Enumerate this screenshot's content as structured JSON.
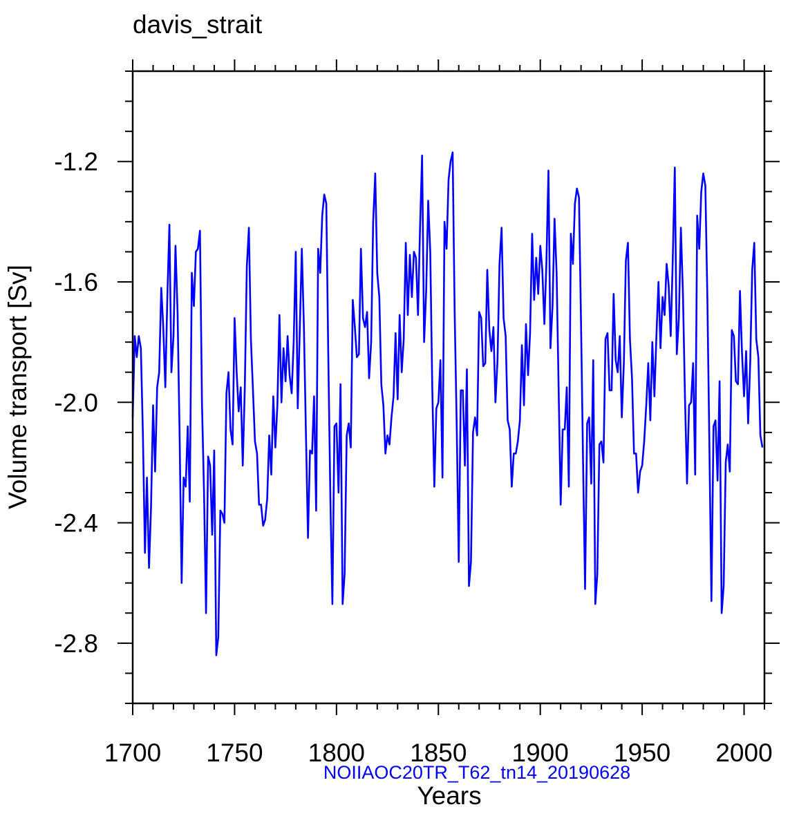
{
  "chart_data": {
    "type": "line",
    "title": "davis_strait",
    "subtitle": "NOIIAOC20TR_T62_tn14_20190628",
    "xlabel": "Years",
    "ylabel": "Volume transport [Sv]",
    "xlim": [
      1700,
      2010
    ],
    "ylim": [
      -3.0,
      -0.9
    ],
    "xticks": [
      1700,
      1750,
      1800,
      1850,
      1900,
      1950,
      2000
    ],
    "xtick_labels": [
      "1700",
      "1750",
      "1800",
      "1850",
      "1900",
      "1950",
      "2000"
    ],
    "yticks": [
      -1.2,
      -1.6,
      -2.0,
      -2.4,
      -2.8
    ],
    "ytick_labels": [
      "-1.2",
      "-1.6",
      "-2.0",
      "-2.4",
      "-2.8"
    ],
    "grid": false,
    "colors": {
      "series": "#0000ff",
      "subtitle": "#0000ff",
      "axes": "#000000"
    },
    "series": [
      {
        "x_start": 1700,
        "x_step": 1,
        "values": [
          -2.05,
          -1.78,
          -1.85,
          -1.78,
          -1.82,
          -2.1,
          -2.5,
          -2.25,
          -2.55,
          -2.35,
          -2.01,
          -2.23,
          -1.95,
          -1.9,
          -1.62,
          -1.75,
          -1.95,
          -1.65,
          -1.41,
          -1.9,
          -1.78,
          -1.48,
          -1.7,
          -2.1,
          -2.6,
          -2.25,
          -2.28,
          -2.08,
          -2.33,
          -1.57,
          -1.68,
          -1.5,
          -1.49,
          -1.43,
          -2.0,
          -2.3,
          -2.7,
          -2.18,
          -2.21,
          -2.44,
          -2.16,
          -2.84,
          -2.78,
          -2.36,
          -2.37,
          -2.4,
          -1.97,
          -1.9,
          -2.09,
          -2.14,
          -1.72,
          -1.9,
          -2.03,
          -1.95,
          -2.21,
          -1.95,
          -1.55,
          -1.42,
          -1.79,
          -1.96,
          -2.13,
          -2.17,
          -2.34,
          -2.34,
          -2.41,
          -2.39,
          -2.32,
          -2.11,
          -2.24,
          -1.98,
          -2.15,
          -2.01,
          -1.71,
          -2.0,
          -1.82,
          -1.93,
          -1.78,
          -1.91,
          -1.97,
          -1.8,
          -1.5,
          -2.02,
          -1.75,
          -1.49,
          -1.75,
          -2.1,
          -2.45,
          -2.16,
          -2.17,
          -1.98,
          -2.36,
          -1.49,
          -1.57,
          -1.38,
          -1.31,
          -1.34,
          -1.85,
          -2.32,
          -2.67,
          -2.08,
          -2.07,
          -2.3,
          -1.94,
          -2.67,
          -2.57,
          -2.11,
          -2.07,
          -2.15,
          -1.66,
          -1.75,
          -1.85,
          -1.84,
          -1.49,
          -1.72,
          -1.75,
          -1.7,
          -1.92,
          -1.8,
          -1.4,
          -1.24,
          -1.57,
          -1.65,
          -1.94,
          -2.01,
          -2.17,
          -2.11,
          -2.14,
          -2.05,
          -1.98,
          -1.77,
          -1.99,
          -1.71,
          -1.9,
          -1.79,
          -1.47,
          -1.71,
          -1.51,
          -1.65,
          -1.5,
          -1.52,
          -1.71,
          -1.42,
          -1.18,
          -1.8,
          -1.63,
          -1.33,
          -1.5,
          -1.95,
          -2.28,
          -2.02,
          -2.0,
          -1.86,
          -2.25,
          -1.4,
          -1.49,
          -1.26,
          -1.2,
          -1.17,
          -1.7,
          -2.08,
          -2.53,
          -1.96,
          -1.96,
          -2.21,
          -1.89,
          -2.61,
          -2.53,
          -2.1,
          -2.05,
          -2.11,
          -1.7,
          -1.72,
          -1.88,
          -1.87,
          -1.56,
          -1.76,
          -1.83,
          -1.75,
          -2.0,
          -1.86,
          -1.54,
          -1.42,
          -1.72,
          -1.78,
          -2.06,
          -2.09,
          -2.28,
          -2.17,
          -2.17,
          -2.13,
          -2.06,
          -1.81,
          -2.01,
          -1.74,
          -1.91,
          -1.77,
          -1.44,
          -1.66,
          -1.52,
          -1.64,
          -1.48,
          -1.56,
          -1.74,
          -1.54,
          -1.23,
          -1.82,
          -1.68,
          -1.39,
          -1.57,
          -1.95,
          -2.34,
          -2.09,
          -2.09,
          -1.95,
          -2.28,
          -1.44,
          -1.54,
          -1.34,
          -1.29,
          -1.32,
          -1.73,
          -2.2,
          -2.62,
          -2.07,
          -2.05,
          -2.27,
          -1.86,
          -2.67,
          -2.57,
          -2.14,
          -2.13,
          -2.2,
          -1.79,
          -1.77,
          -1.96,
          -1.96,
          -1.64,
          -1.86,
          -1.9,
          -1.78,
          -2.05,
          -1.87,
          -1.53,
          -1.47,
          -1.79,
          -1.92,
          -2.17,
          -2.17,
          -2.3,
          -2.23,
          -2.21,
          -2.13,
          -2.01,
          -1.87,
          -2.06,
          -1.8,
          -1.98,
          -1.78,
          -1.6,
          -1.82,
          -1.65,
          -1.71,
          -1.54,
          -1.61,
          -1.78,
          -1.53,
          -1.22,
          -1.84,
          -1.72,
          -1.42,
          -1.64,
          -1.98,
          -2.27,
          -2.01,
          -2.0,
          -1.87,
          -2.24,
          -1.38,
          -1.49,
          -1.3,
          -1.24,
          -1.28,
          -1.65,
          -2.15,
          -2.66,
          -2.08,
          -2.06,
          -2.26,
          -1.93,
          -2.7,
          -2.61,
          -2.2,
          -2.14,
          -2.23,
          -1.76,
          -1.78,
          -1.93,
          -1.94,
          -1.63,
          -1.84,
          -1.98,
          -1.83,
          -2.07,
          -1.87,
          -1.56,
          -1.47,
          -1.79,
          -1.85,
          -2.11,
          -2.15
        ]
      }
    ]
  }
}
